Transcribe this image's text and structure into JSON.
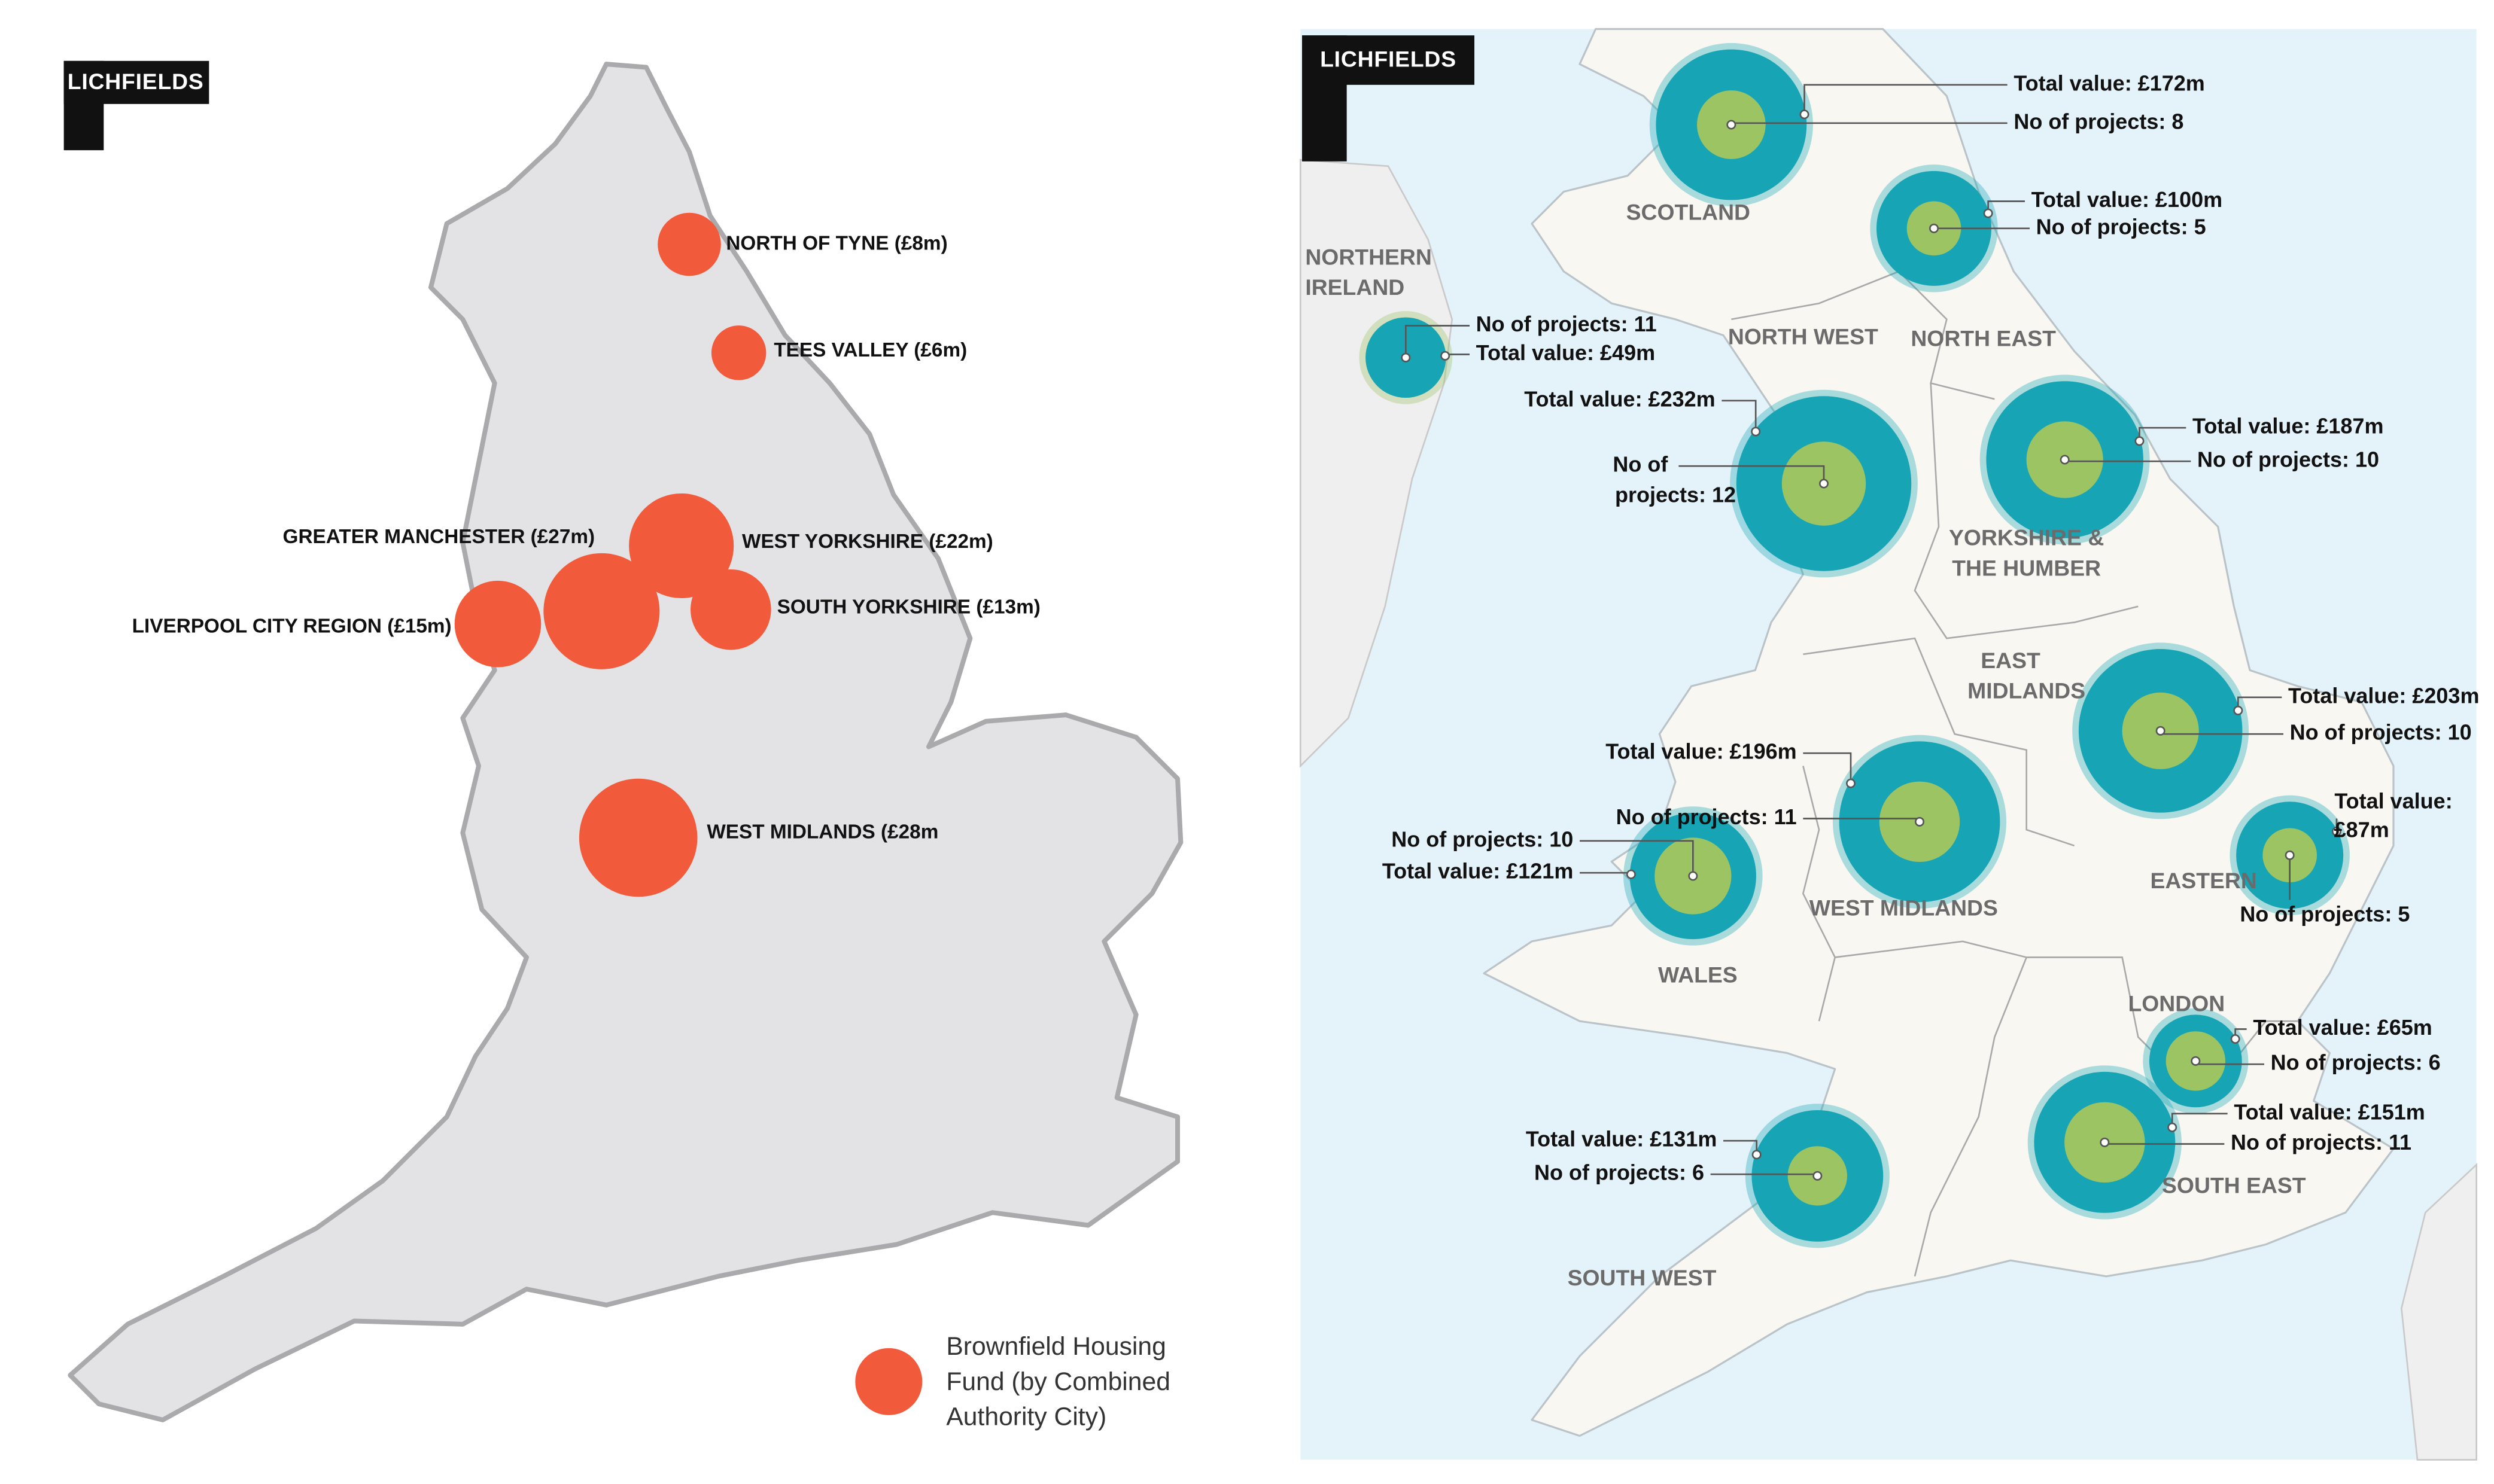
{
  "left_map": {
    "logo": "LICHFIELDS",
    "areas": [
      {
        "label": "NORTH OF TYNE (£8m)",
        "value": 8
      },
      {
        "label": "TEES VALLEY (£6m)",
        "value": 6
      },
      {
        "label": "GREATER MANCHESTER (£27m)",
        "value": 27
      },
      {
        "label": "WEST YORKSHIRE (£22m)",
        "value": 22
      },
      {
        "label": "SOUTH YORKSHIRE (£13m)",
        "value": 13
      },
      {
        "label": "LIVERPOOL CITY REGION (£15m)",
        "value": 15
      },
      {
        "label": "WEST MIDLANDS (£28m",
        "value": 28
      }
    ],
    "legend_lines": [
      "Brownfield Housing",
      "Fund (by Combined",
      "Authority City)"
    ]
  },
  "right_map": {
    "logo": "LICHFIELDS",
    "regions": [
      {
        "name_lines": [
          "SCOTLAND"
        ],
        "total_lines": [
          "Total value: £172m"
        ],
        "total": 172,
        "projects_lines": [
          "No of projects: 8"
        ],
        "projects": 8
      },
      {
        "name_lines": [
          "NORTH EAST"
        ],
        "total_lines": [
          "Total value: £100m"
        ],
        "total": 100,
        "projects_lines": [
          "No of projects: 5"
        ],
        "projects": 5
      },
      {
        "name_lines": [
          "NORTHERN",
          "IRELAND"
        ],
        "total_lines": [
          "Total value: £49m"
        ],
        "total": 49,
        "projects_lines": [
          "No of projects: 11"
        ],
        "projects": 11
      },
      {
        "name_lines": [
          "NORTH WEST"
        ],
        "total_lines": [
          "Total value: £232m"
        ],
        "total": 232,
        "projects_lines": [
          "No of",
          "projects: 12"
        ],
        "projects": 12
      },
      {
        "name_lines": [
          "YORKSHIRE &",
          "THE HUMBER"
        ],
        "total_lines": [
          "Total value: £187m"
        ],
        "total": 187,
        "projects_lines": [
          "No of projects: 10"
        ],
        "projects": 10
      },
      {
        "name_lines": [
          "EAST",
          "MIDLANDS"
        ],
        "total_lines": [
          "Total value: £203m"
        ],
        "total": 203,
        "projects_lines": [
          "No of projects: 10"
        ],
        "projects": 10
      },
      {
        "name_lines": [
          "WEST MIDLANDS"
        ],
        "total_lines": [
          "Total value: £196m"
        ],
        "total": 196,
        "projects_lines": [
          "No of projects: 11"
        ],
        "projects": 11
      },
      {
        "name_lines": [
          "WALES"
        ],
        "total_lines": [
          "Total value: £121m"
        ],
        "total": 121,
        "projects_lines": [
          "No of projects: 10"
        ],
        "projects": 10
      },
      {
        "name_lines": [
          "EASTERN"
        ],
        "total_lines": [
          "Total value:",
          "£87m"
        ],
        "total": 87,
        "projects_lines": [
          "No of projects: 5"
        ],
        "projects": 5
      },
      {
        "name_lines": [
          "LONDON"
        ],
        "total_lines": [
          "Total value: £65m"
        ],
        "total": 65,
        "projects_lines": [
          "No of projects: 6"
        ],
        "projects": 6
      },
      {
        "name_lines": [
          "SOUTH EAST"
        ],
        "total_lines": [
          "Total value: £151m"
        ],
        "total": 151,
        "projects_lines": [
          "No of projects: 11"
        ],
        "projects": 11
      },
      {
        "name_lines": [
          "SOUTH WEST"
        ],
        "total_lines": [
          "Total value: £131m"
        ],
        "total": 131,
        "projects_lines": [
          "No of projects: 6"
        ],
        "projects": 6
      }
    ]
  }
}
